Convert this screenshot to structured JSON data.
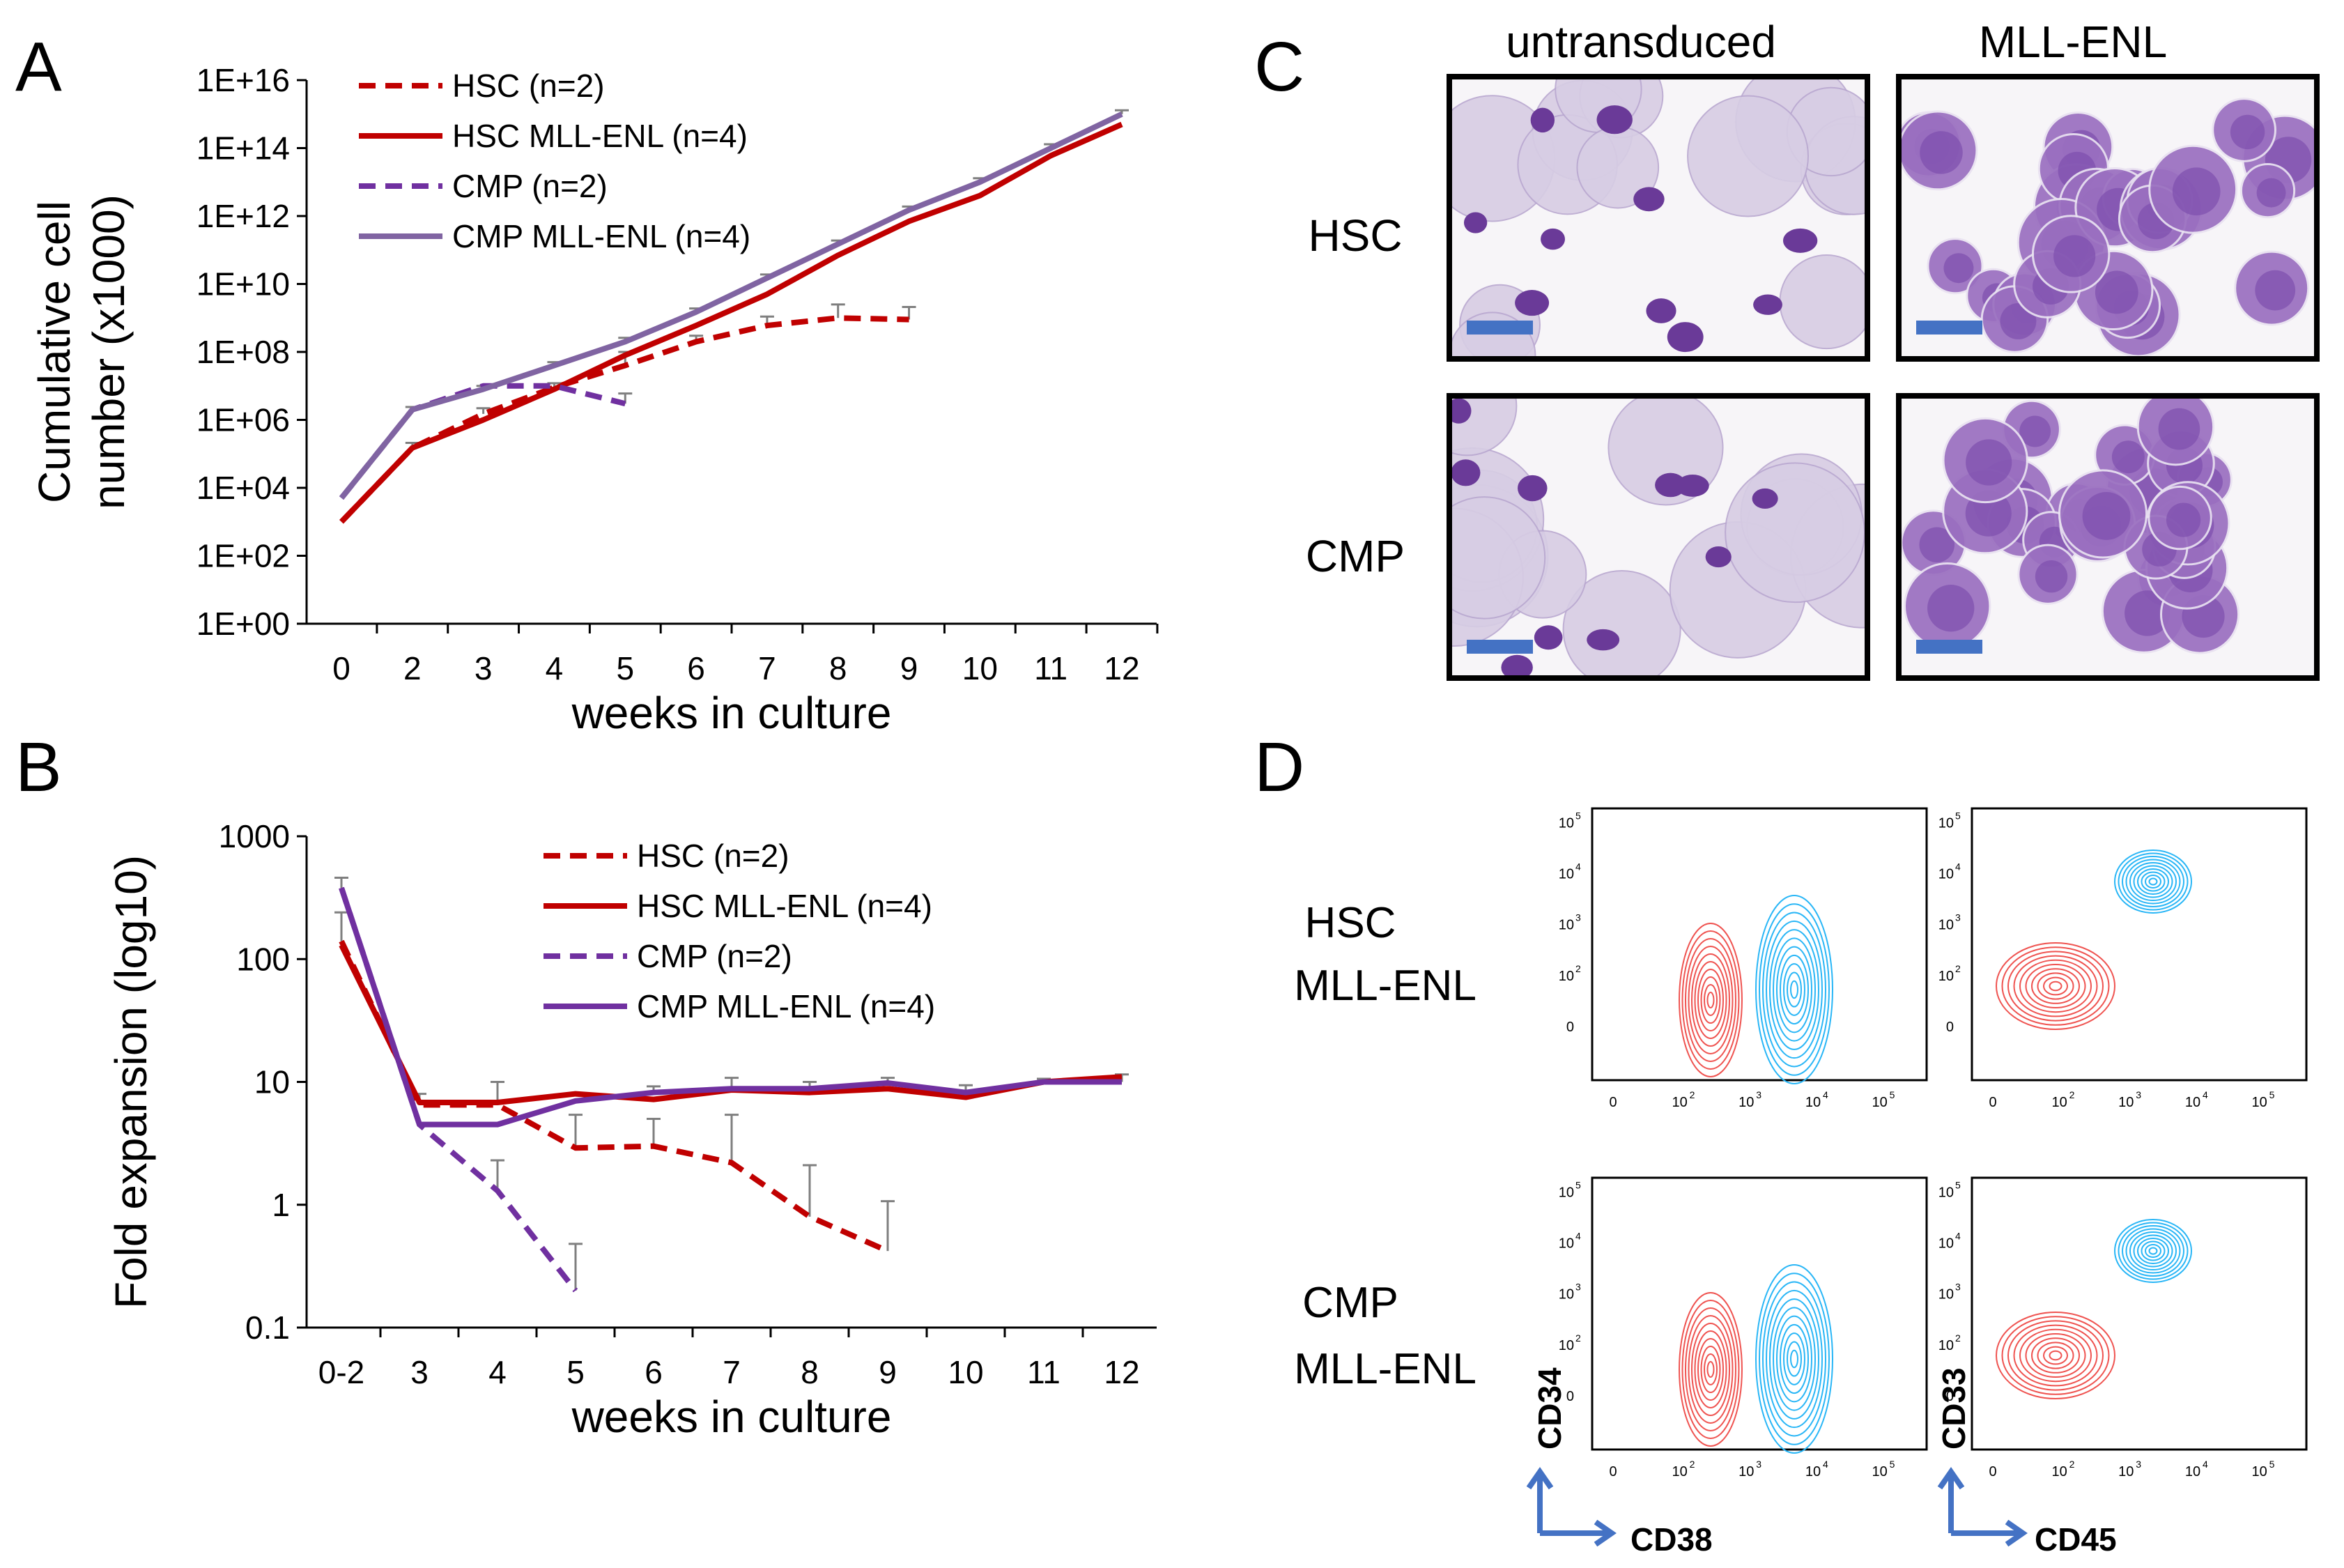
{
  "panels": {
    "A": "A",
    "B": "B",
    "C": "C",
    "D": "D"
  },
  "colors": {
    "hsc": "#c00000",
    "cmp_dashed": "#7030a0",
    "cmp_mll_a": "#8064a2",
    "cmp_mll_b": "#7030a0",
    "error_bar": "#7f7f7f",
    "contour_red": "#ef5350",
    "contour_cyan": "#29b6f6",
    "scale_bar": "#4472c4",
    "arrow": "#4472c4"
  },
  "chart_data": [
    {
      "id": "A",
      "type": "line",
      "title": "",
      "xlabel": "weeks in culture",
      "ylabel": "Cumulative cell number (x1000)",
      "ylabel_lines": [
        "Cumulative cell",
        "number (x1000)"
      ],
      "yscale": "log",
      "ylim": [
        1,
        1e+16
      ],
      "ytick_labels": [
        "1E+00",
        "1E+02",
        "1E+04",
        "1E+06",
        "1E+08",
        "1E+10",
        "1E+12",
        "1E+14",
        "1E+16"
      ],
      "categories": [
        "0",
        "2",
        "3",
        "4",
        "5",
        "6",
        "7",
        "8",
        "9",
        "10",
        "11",
        "12"
      ],
      "legend": "top-left",
      "series": [
        {
          "name": "HSC (n=2)",
          "style": "dashed",
          "color": "#c00000",
          "values": [
            1000,
            150000,
            1500000,
            9000000,
            40000000,
            200000000,
            600000000,
            1000000000,
            900000000,
            null,
            null,
            null
          ],
          "errors": [
            0,
            60000,
            700000,
            3000000,
            60000000,
            100000000,
            500000000,
            1500000000,
            1200000000,
            null,
            null,
            null
          ]
        },
        {
          "name": "HSC MLL-ENL (n=4)",
          "style": "solid",
          "color": "#c00000",
          "values": [
            1000,
            150000,
            1000000,
            8000000,
            80000000,
            600000000,
            5000000000,
            70000000000,
            700000000000,
            4000000000000,
            60000000000000,
            500000000000000
          ],
          "errors": [
            0,
            0,
            0,
            0,
            0,
            0,
            0,
            0,
            0,
            0,
            0,
            0
          ]
        },
        {
          "name": "CMP (n=2)",
          "style": "dashed",
          "color": "#7030a0",
          "values": [
            5000,
            2000000,
            10000000,
            10000000,
            3000000,
            null,
            null,
            null,
            null,
            null,
            null,
            null
          ],
          "errors": [
            0,
            0,
            0,
            0,
            3000000,
            null,
            null,
            null,
            null,
            null,
            null,
            null
          ]
        },
        {
          "name": "CMP MLL-ENL (n=4)",
          "style": "solid",
          "color": "#8064a2",
          "values": [
            5000,
            2000000,
            8000000,
            40000000,
            200000000,
            1500000000,
            15000000000,
            150000000000,
            1500000000000,
            10000000000000,
            100000000000000,
            1000000000000000
          ],
          "errors": [
            0,
            400000,
            2000000,
            10000000,
            60000000,
            400000000,
            4000000000,
            40000000000,
            400000000000,
            3000000000000,
            30000000000000,
            300000000000000
          ]
        }
      ]
    },
    {
      "id": "B",
      "type": "line",
      "title": "",
      "xlabel": "weeks in culture",
      "ylabel": "Fold expansion (log10)",
      "yscale": "log",
      "ylim": [
        0.1,
        1000
      ],
      "ytick_labels": [
        "0.1",
        "1",
        "10",
        "100",
        "1000"
      ],
      "categories": [
        "0-2",
        "3",
        "4",
        "5",
        "6",
        "7",
        "8",
        "9",
        "10",
        "11",
        "12"
      ],
      "legend": "top-right",
      "series": [
        {
          "name": "HSC (n=2)",
          "style": "dashed",
          "color": "#c00000",
          "values": [
            140,
            6.5,
            6.5,
            2.9,
            3.0,
            2.2,
            0.8,
            0.42,
            null,
            null,
            null
          ],
          "errors": [
            100,
            1.5,
            3.5,
            2.5,
            2.0,
            3.2,
            1.3,
            0.65,
            null,
            null,
            null
          ]
        },
        {
          "name": "HSC MLL-ENL (n=4)",
          "style": "solid",
          "color": "#c00000",
          "values": [
            130,
            6.8,
            6.8,
            8.0,
            7.2,
            8.6,
            8.2,
            8.8,
            7.5,
            10.0,
            11.0
          ],
          "errors": [
            0,
            0,
            0,
            0,
            0,
            0,
            0,
            0,
            0,
            0,
            0
          ]
        },
        {
          "name": "CMP (n=2)",
          "style": "dashed",
          "color": "#7030a0",
          "values": [
            380,
            4.5,
            1.3,
            0.2,
            null,
            null,
            null,
            null,
            null,
            null,
            null
          ],
          "errors": [
            80,
            0,
            1.0,
            0.28,
            null,
            null,
            null,
            null,
            null,
            null,
            null
          ]
        },
        {
          "name": "CMP MLL-ENL (n=4)",
          "style": "solid",
          "color": "#7030a0",
          "values": [
            380,
            4.5,
            4.5,
            7.0,
            8.2,
            8.8,
            8.8,
            9.8,
            8.2,
            10.0,
            10.0
          ],
          "errors": [
            80,
            0,
            0,
            0,
            1.0,
            2.0,
            1.2,
            1.0,
            1.2,
            0.6,
            1.5
          ]
        }
      ]
    }
  ],
  "micrographs": {
    "columns": [
      "untransduced",
      "MLL-ENL"
    ],
    "rows": [
      "HSC",
      "CMP"
    ]
  },
  "flow": {
    "row_labels": [
      [
        "HSC",
        "MLL-ENL"
      ],
      [
        "CMP",
        "MLL-ENL"
      ]
    ],
    "left_axes": {
      "x": "CD38",
      "y": "CD34"
    },
    "right_axes": {
      "x": "CD45",
      "y": "CD33"
    },
    "tick_labels_x": [
      "0",
      "10",
      "10",
      "10",
      "10"
    ],
    "tick_exponents_x": [
      "",
      "2",
      "3",
      "4",
      "5"
    ],
    "tick_labels_y": [
      "0",
      "10",
      "10",
      "10",
      "10"
    ],
    "tick_exponents_y": [
      "",
      "2",
      "3",
      "4",
      "5"
    ]
  }
}
